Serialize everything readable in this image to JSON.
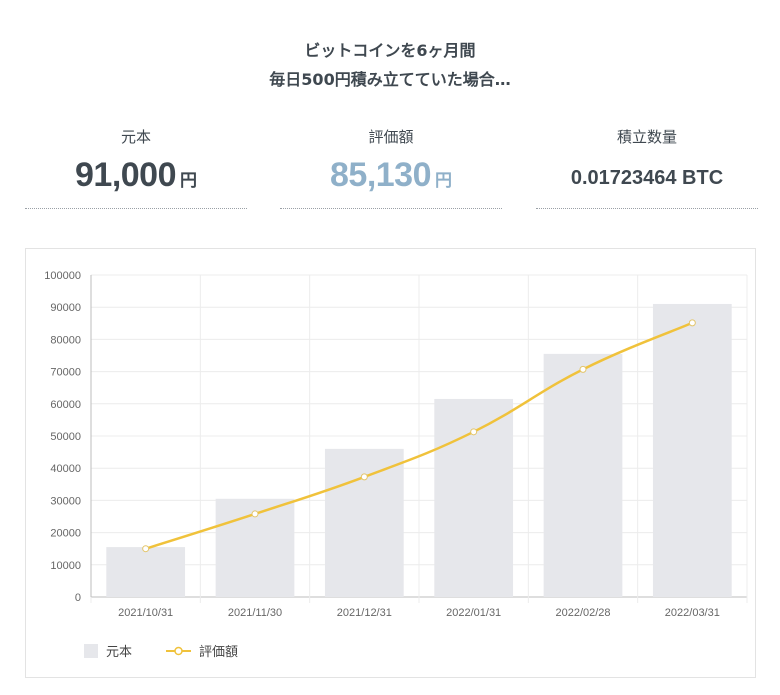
{
  "headline": {
    "line1": "ビットコインを6ヶ月間",
    "line2": "毎日500円積み立てていた場合…"
  },
  "stats": {
    "principal": {
      "label": "元本",
      "value": "91,000",
      "unit": "円",
      "color": "#3f4850"
    },
    "valuation": {
      "label": "評価額",
      "value": "85,130",
      "unit": "円",
      "color": "#8fb0c9"
    },
    "quantity": {
      "label": "積立数量",
      "value": "0.01723464 BTC"
    }
  },
  "chart_data": {
    "type": "bar",
    "categories": [
      "2021/10/31",
      "2021/11/30",
      "2021/12/31",
      "2022/01/31",
      "2022/02/28",
      "2022/03/31"
    ],
    "ylim": [
      0,
      100000
    ],
    "yticks": [
      0,
      10000,
      20000,
      30000,
      40000,
      50000,
      60000,
      70000,
      80000,
      90000,
      100000
    ],
    "grid": true,
    "legend_position": "bottom-left",
    "series": [
      {
        "name": "元本",
        "type": "bar",
        "color": "#e6e7eb",
        "values": [
          15500,
          30500,
          46000,
          61500,
          75500,
          91000
        ]
      },
      {
        "name": "評価額",
        "type": "line",
        "color": "#f0c23b",
        "values": [
          15000,
          25800,
          37300,
          51300,
          70700,
          85130
        ]
      }
    ]
  }
}
